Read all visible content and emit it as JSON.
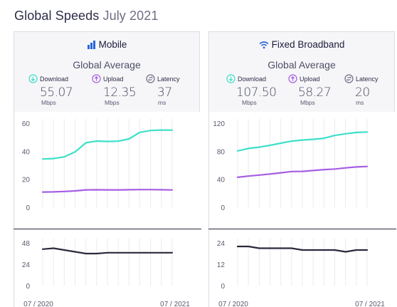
{
  "header": {
    "title": "Global Speeds",
    "subtitle": "July 2021"
  },
  "colors": {
    "download": "#3de0c8",
    "upload": "#a65ee2",
    "latency": "#2a2a3e",
    "grid": "#ebebef",
    "axis_text": "#5a5a6e"
  },
  "panels": [
    {
      "id": "mobile",
      "title": "Mobile",
      "icon": "signal-bars-icon",
      "subtitle": "Global Average",
      "metrics": [
        {
          "label": "Download",
          "value": "55.07",
          "unit": "Mbps",
          "icon": "download-arrow-icon"
        },
        {
          "label": "Upload",
          "value": "12.35",
          "unit": "Mbps",
          "icon": "upload-arrow-icon"
        },
        {
          "label": "Latency",
          "value": "37",
          "unit": "ms",
          "icon": "latency-icon"
        }
      ],
      "x_start_label": "07 / 2020",
      "x_end_label": "07 / 2021"
    },
    {
      "id": "fixed",
      "title": "Fixed Broadband",
      "icon": "wifi-icon",
      "subtitle": "Global Average",
      "metrics": [
        {
          "label": "Download",
          "value": "107.50",
          "unit": "Mbps",
          "icon": "download-arrow-icon"
        },
        {
          "label": "Upload",
          "value": "58.27",
          "unit": "Mbps",
          "icon": "upload-arrow-icon"
        },
        {
          "label": "Latency",
          "value": "20",
          "unit": "ms",
          "icon": "latency-icon"
        }
      ],
      "x_start_label": "07 / 2020",
      "x_end_label": "07 / 2021"
    }
  ],
  "chart_data": [
    {
      "type": "line",
      "title": "Mobile",
      "x": [
        "07/2020",
        "08/2020",
        "09/2020",
        "10/2020",
        "11/2020",
        "12/2020",
        "01/2021",
        "02/2021",
        "03/2021",
        "04/2021",
        "05/2021",
        "06/2021",
        "07/2021"
      ],
      "x_tick_labels": [
        "07 / 2020",
        "07 / 2021"
      ],
      "series": [
        {
          "name": "Download",
          "values": [
            34.5,
            34.8,
            36.0,
            39.5,
            46.0,
            47.3,
            47.0,
            47.2,
            48.8,
            53.5,
            54.8,
            55.1,
            55.07
          ]
        },
        {
          "name": "Upload",
          "values": [
            10.9,
            11.0,
            11.3,
            11.7,
            12.4,
            12.5,
            12.4,
            12.4,
            12.5,
            12.6,
            12.6,
            12.5,
            12.35
          ]
        }
      ],
      "ylim": [
        0,
        60
      ],
      "yticks": [
        0,
        20,
        40,
        60
      ],
      "grid": true
    },
    {
      "type": "line",
      "title": "Mobile",
      "x": [
        "07/2020",
        "08/2020",
        "09/2020",
        "10/2020",
        "11/2020",
        "12/2020",
        "01/2021",
        "02/2021",
        "03/2021",
        "04/2021",
        "05/2021",
        "06/2021",
        "07/2021"
      ],
      "x_tick_labels": [
        "07 / 2020",
        "07 / 2021"
      ],
      "series": [
        {
          "name": "Latency",
          "values": [
            41,
            42,
            40,
            38,
            36,
            36,
            37,
            37,
            37,
            37,
            37,
            37,
            37
          ]
        }
      ],
      "ylim": [
        0,
        48
      ],
      "yticks": [
        0,
        24,
        48
      ],
      "grid": true
    },
    {
      "type": "line",
      "title": "Fixed Broadband",
      "x": [
        "07/2020",
        "08/2020",
        "09/2020",
        "10/2020",
        "11/2020",
        "12/2020",
        "01/2021",
        "02/2021",
        "03/2021",
        "04/2021",
        "05/2021",
        "06/2021",
        "07/2021"
      ],
      "x_tick_labels": [
        "07 / 2020",
        "07 / 2021"
      ],
      "series": [
        {
          "name": "Download",
          "values": [
            80.5,
            84.0,
            85.8,
            88.5,
            91.5,
            94.5,
            96.0,
            97.0,
            98.5,
            102.5,
            105.0,
            106.8,
            107.5
          ]
        },
        {
          "name": "Upload",
          "values": [
            42.8,
            44.5,
            46.0,
            47.5,
            49.2,
            51.0,
            51.3,
            52.5,
            53.8,
            54.6,
            56.2,
            57.6,
            58.27
          ]
        }
      ],
      "ylim": [
        0,
        120
      ],
      "yticks": [
        0,
        40,
        80,
        120
      ],
      "grid": true
    },
    {
      "type": "line",
      "title": "Fixed Broadband",
      "x": [
        "07/2020",
        "08/2020",
        "09/2020",
        "10/2020",
        "11/2020",
        "12/2020",
        "01/2021",
        "02/2021",
        "03/2021",
        "04/2021",
        "05/2021",
        "06/2021",
        "07/2021"
      ],
      "x_tick_labels": [
        "07 / 2020",
        "07 / 2021"
      ],
      "series": [
        {
          "name": "Latency",
          "values": [
            22,
            22,
            21,
            21,
            21,
            21,
            20,
            20,
            20,
            20,
            19,
            20,
            20
          ]
        }
      ],
      "ylim": [
        0,
        24
      ],
      "yticks": [
        0,
        12,
        24
      ],
      "grid": true
    }
  ]
}
